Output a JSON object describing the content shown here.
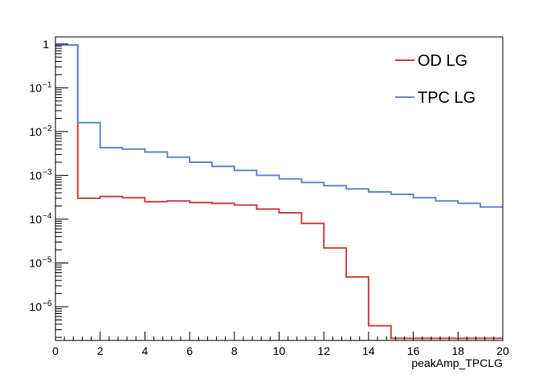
{
  "chart_data": {
    "type": "line",
    "style": "step-histogram",
    "title": "",
    "xlabel": "peakAmp_TPCLG",
    "ylabel": "",
    "xlim": [
      0,
      20
    ],
    "ylim": [
      1.7e-07,
      1.45
    ],
    "yscale": "log",
    "grid": false,
    "legend_position": "top-right",
    "bin_edges": [
      0,
      1,
      2,
      3,
      4,
      5,
      6,
      7,
      8,
      9,
      10,
      11,
      12,
      13,
      14,
      15,
      16,
      17,
      18,
      19,
      20
    ],
    "x_ticks": [
      "0",
      "2",
      "4",
      "6",
      "8",
      "10",
      "12",
      "14",
      "16",
      "18",
      "20"
    ],
    "y_ticks": [
      {
        "value": 1,
        "base": "1",
        "exp": ""
      },
      {
        "value": 0.1,
        "base": "10",
        "exp": "−1"
      },
      {
        "value": 0.01,
        "base": "10",
        "exp": "−2"
      },
      {
        "value": 0.001,
        "base": "10",
        "exp": "−3"
      },
      {
        "value": 0.0001,
        "base": "10",
        "exp": "−4"
      },
      {
        "value": 1e-05,
        "base": "10",
        "exp": "−5"
      },
      {
        "value": 1e-06,
        "base": "10",
        "exp": "−6"
      }
    ],
    "series": [
      {
        "name": "OD LG",
        "color": "#cc4444",
        "values": [
          0.95,
          0.0003,
          0.00033,
          0.00031,
          0.00025,
          0.00026,
          0.00024,
          0.00023,
          0.00021,
          0.00017,
          0.00014,
          8e-05,
          2.2e-05,
          4.8e-06,
          3.7e-07,
          1.9e-07,
          1.9e-07,
          1.9e-07,
          1.9e-07,
          1.9e-07
        ]
      },
      {
        "name": "TPC LG",
        "color": "#6688cc",
        "values": [
          0.95,
          0.016,
          0.0043,
          0.004,
          0.0034,
          0.0026,
          0.002,
          0.0016,
          0.0013,
          0.001,
          0.00083,
          0.00069,
          0.00058,
          0.00049,
          0.00042,
          0.00037,
          0.00031,
          0.00026,
          0.00023,
          0.00019
        ]
      }
    ]
  }
}
